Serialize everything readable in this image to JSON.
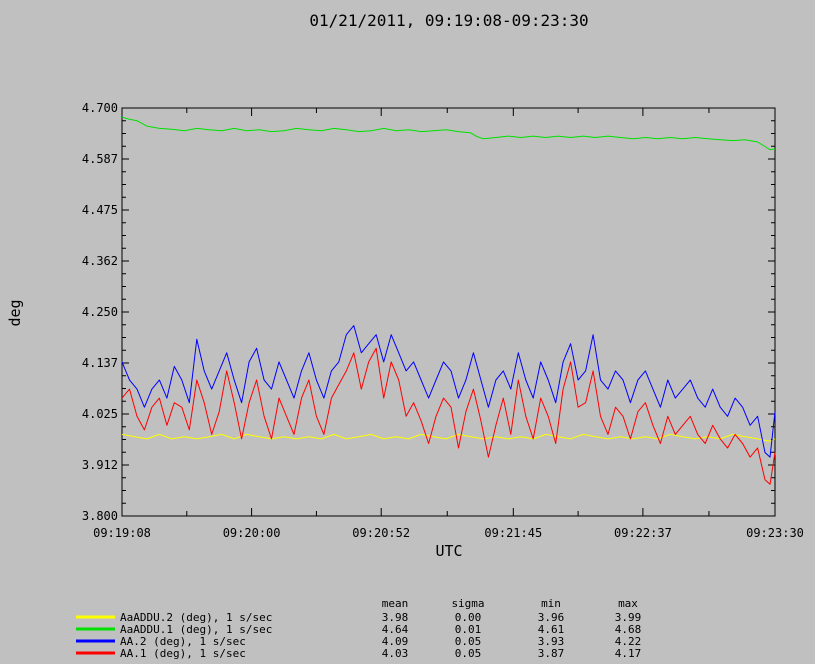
{
  "chart_data": {
    "type": "line",
    "title": "01/21/2011, 09:19:08-09:23:30",
    "xlabel": "UTC",
    "ylabel": "deg",
    "ylim": [
      3.8,
      4.7
    ],
    "yticks": [
      "4.700",
      "4.587",
      "4.475",
      "4.362",
      "4.250",
      "4.137",
      "4.025",
      "3.912",
      "3.800"
    ],
    "xlim_seconds": [
      0,
      262
    ],
    "xticks": [
      {
        "label": "09:19:08",
        "t": 0
      },
      {
        "label": "09:20:00",
        "t": 52
      },
      {
        "label": "09:20:52",
        "t": 104
      },
      {
        "label": "09:21:45",
        "t": 157
      },
      {
        "label": "09:22:37",
        "t": 209
      },
      {
        "label": "09:23:30",
        "t": 262
      }
    ],
    "stats_headers": [
      "mean",
      "sigma",
      "min",
      "max"
    ],
    "series": [
      {
        "name": "AaADDU.2 (deg), 1 s/sec",
        "color": "#ffff00",
        "mean": "3.98",
        "sigma": "0.00",
        "min": "3.96",
        "max": "3.99",
        "points": [
          [
            0,
            3.98
          ],
          [
            5,
            3.975
          ],
          [
            10,
            3.97
          ],
          [
            15,
            3.98
          ],
          [
            20,
            3.97
          ],
          [
            25,
            3.975
          ],
          [
            30,
            3.97
          ],
          [
            35,
            3.975
          ],
          [
            40,
            3.98
          ],
          [
            45,
            3.97
          ],
          [
            50,
            3.98
          ],
          [
            55,
            3.975
          ],
          [
            60,
            3.97
          ],
          [
            65,
            3.975
          ],
          [
            70,
            3.97
          ],
          [
            75,
            3.975
          ],
          [
            80,
            3.97
          ],
          [
            85,
            3.98
          ],
          [
            90,
            3.97
          ],
          [
            95,
            3.975
          ],
          [
            100,
            3.98
          ],
          [
            105,
            3.97
          ],
          [
            110,
            3.975
          ],
          [
            115,
            3.97
          ],
          [
            120,
            3.98
          ],
          [
            125,
            3.975
          ],
          [
            130,
            3.97
          ],
          [
            135,
            3.98
          ],
          [
            140,
            3.975
          ],
          [
            145,
            3.97
          ],
          [
            150,
            3.975
          ],
          [
            155,
            3.97
          ],
          [
            160,
            3.975
          ],
          [
            165,
            3.97
          ],
          [
            170,
            3.98
          ],
          [
            175,
            3.975
          ],
          [
            180,
            3.97
          ],
          [
            185,
            3.98
          ],
          [
            190,
            3.975
          ],
          [
            195,
            3.97
          ],
          [
            200,
            3.975
          ],
          [
            205,
            3.97
          ],
          [
            210,
            3.975
          ],
          [
            215,
            3.97
          ],
          [
            220,
            3.98
          ],
          [
            225,
            3.975
          ],
          [
            230,
            3.97
          ],
          [
            235,
            3.975
          ],
          [
            240,
            3.97
          ],
          [
            245,
            3.98
          ],
          [
            250,
            3.975
          ],
          [
            255,
            3.97
          ],
          [
            260,
            3.965
          ],
          [
            262,
            3.97
          ]
        ]
      },
      {
        "name": "AaADDU.1 (deg), 1 s/sec",
        "color": "#00e000",
        "mean": "4.64",
        "sigma": "0.01",
        "min": "4.61",
        "max": "4.68",
        "points": [
          [
            0,
            4.68
          ],
          [
            3,
            4.675
          ],
          [
            6,
            4.672
          ],
          [
            10,
            4.66
          ],
          [
            15,
            4.655
          ],
          [
            20,
            4.653
          ],
          [
            25,
            4.65
          ],
          [
            30,
            4.655
          ],
          [
            35,
            4.652
          ],
          [
            40,
            4.65
          ],
          [
            45,
            4.655
          ],
          [
            50,
            4.65
          ],
          [
            55,
            4.652
          ],
          [
            60,
            4.648
          ],
          [
            65,
            4.65
          ],
          [
            70,
            4.655
          ],
          [
            75,
            4.652
          ],
          [
            80,
            4.65
          ],
          [
            85,
            4.655
          ],
          [
            90,
            4.652
          ],
          [
            95,
            4.648
          ],
          [
            100,
            4.65
          ],
          [
            105,
            4.655
          ],
          [
            110,
            4.65
          ],
          [
            115,
            4.652
          ],
          [
            120,
            4.648
          ],
          [
            125,
            4.65
          ],
          [
            130,
            4.652
          ],
          [
            135,
            4.648
          ],
          [
            140,
            4.645
          ],
          [
            142,
            4.638
          ],
          [
            145,
            4.632
          ],
          [
            150,
            4.635
          ],
          [
            155,
            4.638
          ],
          [
            160,
            4.635
          ],
          [
            165,
            4.638
          ],
          [
            170,
            4.635
          ],
          [
            175,
            4.638
          ],
          [
            180,
            4.635
          ],
          [
            185,
            4.638
          ],
          [
            190,
            4.635
          ],
          [
            195,
            4.638
          ],
          [
            200,
            4.635
          ],
          [
            205,
            4.632
          ],
          [
            210,
            4.635
          ],
          [
            215,
            4.632
          ],
          [
            220,
            4.635
          ],
          [
            225,
            4.632
          ],
          [
            230,
            4.635
          ],
          [
            235,
            4.632
          ],
          [
            240,
            4.63
          ],
          [
            245,
            4.628
          ],
          [
            250,
            4.63
          ],
          [
            255,
            4.625
          ],
          [
            258,
            4.615
          ],
          [
            260,
            4.608
          ],
          [
            262,
            4.61
          ]
        ]
      },
      {
        "name": "AA.2 (deg), 1 s/sec",
        "color": "#0000ff",
        "mean": "4.09",
        "sigma": "0.05",
        "min": "3.93",
        "max": "4.22",
        "points": [
          [
            0,
            4.14
          ],
          [
            3,
            4.1
          ],
          [
            6,
            4.08
          ],
          [
            9,
            4.04
          ],
          [
            12,
            4.08
          ],
          [
            15,
            4.1
          ],
          [
            18,
            4.06
          ],
          [
            21,
            4.13
          ],
          [
            24,
            4.1
          ],
          [
            27,
            4.05
          ],
          [
            30,
            4.19
          ],
          [
            33,
            4.12
          ],
          [
            36,
            4.08
          ],
          [
            39,
            4.12
          ],
          [
            42,
            4.16
          ],
          [
            45,
            4.1
          ],
          [
            48,
            4.05
          ],
          [
            51,
            4.14
          ],
          [
            54,
            4.17
          ],
          [
            57,
            4.1
          ],
          [
            60,
            4.08
          ],
          [
            63,
            4.14
          ],
          [
            66,
            4.1
          ],
          [
            69,
            4.06
          ],
          [
            72,
            4.12
          ],
          [
            75,
            4.16
          ],
          [
            78,
            4.1
          ],
          [
            81,
            4.06
          ],
          [
            84,
            4.12
          ],
          [
            87,
            4.14
          ],
          [
            90,
            4.2
          ],
          [
            93,
            4.22
          ],
          [
            96,
            4.16
          ],
          [
            99,
            4.18
          ],
          [
            102,
            4.2
          ],
          [
            105,
            4.14
          ],
          [
            108,
            4.2
          ],
          [
            111,
            4.16
          ],
          [
            114,
            4.12
          ],
          [
            117,
            4.14
          ],
          [
            120,
            4.1
          ],
          [
            123,
            4.06
          ],
          [
            126,
            4.1
          ],
          [
            129,
            4.14
          ],
          [
            132,
            4.12
          ],
          [
            135,
            4.06
          ],
          [
            138,
            4.1
          ],
          [
            141,
            4.16
          ],
          [
            144,
            4.1
          ],
          [
            147,
            4.04
          ],
          [
            150,
            4.1
          ],
          [
            153,
            4.12
          ],
          [
            156,
            4.08
          ],
          [
            159,
            4.16
          ],
          [
            162,
            4.1
          ],
          [
            165,
            4.06
          ],
          [
            168,
            4.14
          ],
          [
            171,
            4.1
          ],
          [
            174,
            4.05
          ],
          [
            177,
            4.14
          ],
          [
            180,
            4.18
          ],
          [
            183,
            4.1
          ],
          [
            186,
            4.12
          ],
          [
            189,
            4.2
          ],
          [
            192,
            4.1
          ],
          [
            195,
            4.08
          ],
          [
            198,
            4.12
          ],
          [
            201,
            4.1
          ],
          [
            204,
            4.05
          ],
          [
            207,
            4.1
          ],
          [
            210,
            4.12
          ],
          [
            213,
            4.08
          ],
          [
            216,
            4.04
          ],
          [
            219,
            4.1
          ],
          [
            222,
            4.06
          ],
          [
            225,
            4.08
          ],
          [
            228,
            4.1
          ],
          [
            231,
            4.06
          ],
          [
            234,
            4.04
          ],
          [
            237,
            4.08
          ],
          [
            240,
            4.04
          ],
          [
            243,
            4.02
          ],
          [
            246,
            4.06
          ],
          [
            249,
            4.04
          ],
          [
            252,
            4.0
          ],
          [
            255,
            4.02
          ],
          [
            258,
            3.94
          ],
          [
            260,
            3.93
          ],
          [
            262,
            4.03
          ]
        ]
      },
      {
        "name": "AA.1 (deg), 1 s/sec",
        "color": "#ff0000",
        "mean": "4.03",
        "sigma": "0.05",
        "min": "3.87",
        "max": "4.17",
        "points": [
          [
            0,
            4.06
          ],
          [
            3,
            4.08
          ],
          [
            6,
            4.02
          ],
          [
            9,
            3.99
          ],
          [
            12,
            4.04
          ],
          [
            15,
            4.06
          ],
          [
            18,
            4.0
          ],
          [
            21,
            4.05
          ],
          [
            24,
            4.04
          ],
          [
            27,
            3.99
          ],
          [
            30,
            4.1
          ],
          [
            33,
            4.05
          ],
          [
            36,
            3.98
          ],
          [
            39,
            4.03
          ],
          [
            42,
            4.12
          ],
          [
            45,
            4.05
          ],
          [
            48,
            3.97
          ],
          [
            51,
            4.05
          ],
          [
            54,
            4.1
          ],
          [
            57,
            4.02
          ],
          [
            60,
            3.97
          ],
          [
            63,
            4.06
          ],
          [
            66,
            4.02
          ],
          [
            69,
            3.98
          ],
          [
            72,
            4.06
          ],
          [
            75,
            4.1
          ],
          [
            78,
            4.02
          ],
          [
            81,
            3.98
          ],
          [
            84,
            4.06
          ],
          [
            87,
            4.09
          ],
          [
            90,
            4.12
          ],
          [
            93,
            4.16
          ],
          [
            96,
            4.08
          ],
          [
            99,
            4.14
          ],
          [
            102,
            4.17
          ],
          [
            105,
            4.06
          ],
          [
            108,
            4.14
          ],
          [
            111,
            4.1
          ],
          [
            114,
            4.02
          ],
          [
            117,
            4.05
          ],
          [
            120,
            4.01
          ],
          [
            123,
            3.96
          ],
          [
            126,
            4.02
          ],
          [
            129,
            4.06
          ],
          [
            132,
            4.04
          ],
          [
            135,
            3.95
          ],
          [
            138,
            4.03
          ],
          [
            141,
            4.08
          ],
          [
            144,
            4.01
          ],
          [
            147,
            3.93
          ],
          [
            150,
            4.0
          ],
          [
            153,
            4.06
          ],
          [
            156,
            3.98
          ],
          [
            159,
            4.1
          ],
          [
            162,
            4.02
          ],
          [
            165,
            3.97
          ],
          [
            168,
            4.06
          ],
          [
            171,
            4.02
          ],
          [
            174,
            3.96
          ],
          [
            177,
            4.08
          ],
          [
            180,
            4.14
          ],
          [
            183,
            4.04
          ],
          [
            186,
            4.05
          ],
          [
            189,
            4.12
          ],
          [
            192,
            4.02
          ],
          [
            195,
            3.98
          ],
          [
            198,
            4.04
          ],
          [
            201,
            4.02
          ],
          [
            204,
            3.97
          ],
          [
            207,
            4.03
          ],
          [
            210,
            4.05
          ],
          [
            213,
            4.0
          ],
          [
            216,
            3.96
          ],
          [
            219,
            4.02
          ],
          [
            222,
            3.98
          ],
          [
            225,
            4.0
          ],
          [
            228,
            4.02
          ],
          [
            231,
            3.98
          ],
          [
            234,
            3.96
          ],
          [
            237,
            4.0
          ],
          [
            240,
            3.97
          ],
          [
            243,
            3.95
          ],
          [
            246,
            3.98
          ],
          [
            249,
            3.96
          ],
          [
            252,
            3.93
          ],
          [
            255,
            3.95
          ],
          [
            258,
            3.88
          ],
          [
            260,
            3.87
          ],
          [
            262,
            3.94
          ]
        ]
      }
    ]
  }
}
